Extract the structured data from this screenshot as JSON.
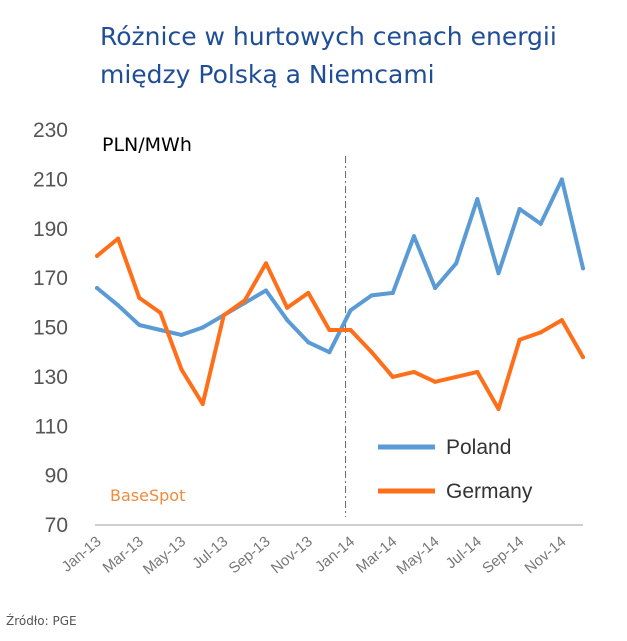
{
  "title_lines": [
    "Różnice w hurtowych cenach energii",
    "między Polską a Niemcami"
  ],
  "source": "Źródło: PGE",
  "colors": {
    "poland": "#5b9bd5",
    "germany": "#ff6f1a",
    "title": "#1f4e96",
    "annotation": "#f08a3c"
  },
  "chart_data": {
    "type": "line",
    "title": "Różnice w hurtowych cenach energii między Polską a Niemcami",
    "unit_label": "PLN/MWh",
    "annotation": "BaseSpot",
    "ylim": [
      70,
      230
    ],
    "yticks": [
      70,
      90,
      110,
      130,
      150,
      170,
      190,
      210,
      230
    ],
    "categories": [
      "Jan-13",
      "Feb-13",
      "Mar-13",
      "Apr-13",
      "May-13",
      "Jun-13",
      "Jul-13",
      "Aug-13",
      "Sep-13",
      "Oct-13",
      "Nov-13",
      "Dec-13",
      "Jan-14",
      "Feb-14",
      "Mar-14",
      "Apr-14",
      "May-14",
      "Jun-14",
      "Jul-14",
      "Aug-14",
      "Sep-14",
      "Oct-14",
      "Nov-14",
      "Dec-14"
    ],
    "tick_labels": [
      "Jan-13",
      "Mar-13",
      "May-13",
      "Jul-13",
      "Sep-13",
      "Nov-13",
      "Jan-14",
      "Mar-14",
      "May-14",
      "Jul-14",
      "Sep-14",
      "Nov-14"
    ],
    "divider_at": "Jan-14",
    "legend_position": "bottom-right",
    "series": [
      {
        "name": "Poland",
        "values": [
          166,
          159,
          151,
          149,
          147,
          150,
          155,
          160,
          165,
          153,
          144,
          140,
          157,
          163,
          164,
          187,
          166,
          176,
          202,
          172,
          198,
          192,
          210,
          174
        ]
      },
      {
        "name": "Germany",
        "values": [
          179,
          186,
          162,
          156,
          133,
          119,
          155,
          161,
          176,
          158,
          164,
          149,
          149,
          140,
          130,
          132,
          128,
          130,
          132,
          117,
          145,
          148,
          153,
          138
        ]
      }
    ]
  }
}
